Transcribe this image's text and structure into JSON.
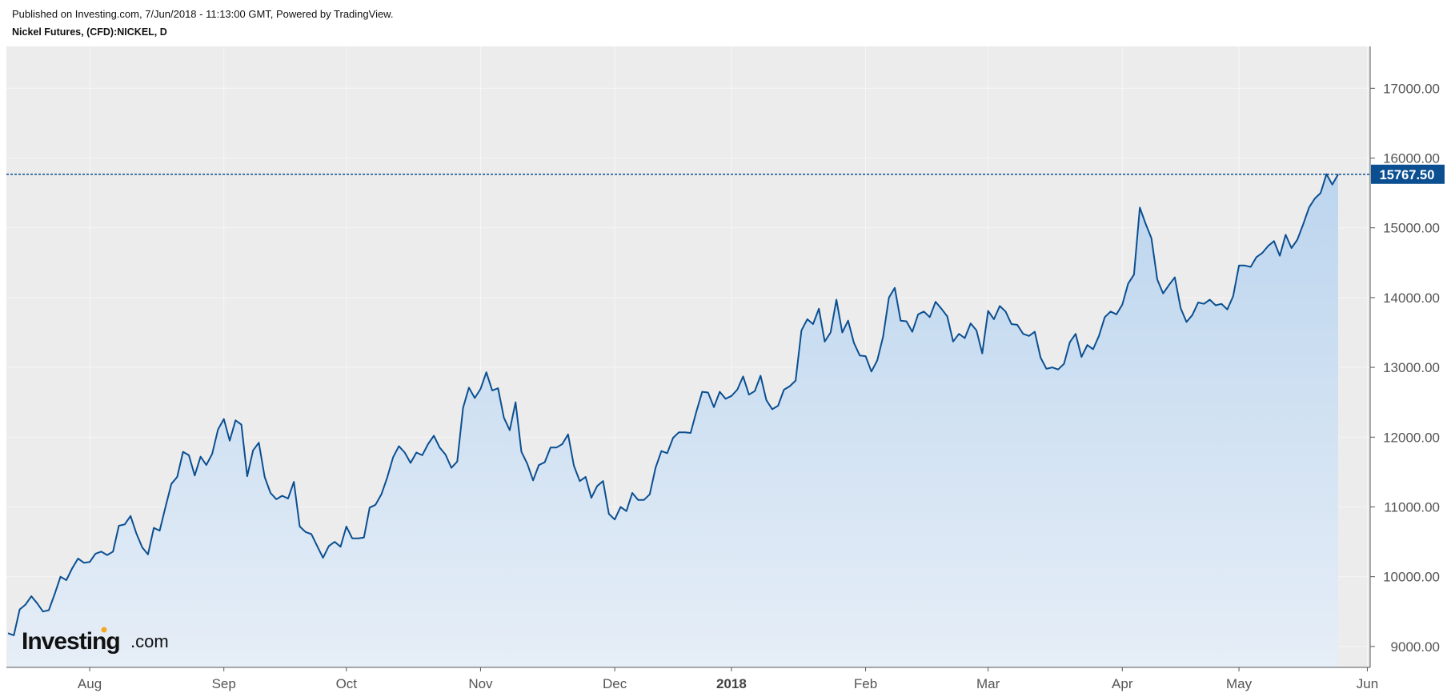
{
  "header": {
    "published": "Published on Investing.com, 7/Jun/2018 - 11:13:00 GMT, Powered by TradingView.",
    "title": "Nickel Futures, (CFD):NICKEL, D"
  },
  "logo": {
    "main": "Investing",
    "suffix": ".com",
    "dot_color": "#f5a623"
  },
  "colors": {
    "line": "#0b4f91",
    "fill_top": "#bcd5ee",
    "fill_bottom": "#e6eef7",
    "plot_bg": "#ececec",
    "grid": "#f6f6f6",
    "price_tag": "#0b4f91"
  },
  "chart_data": {
    "type": "area",
    "ylim": [
      8700,
      17600
    ],
    "y_ticks": [
      "9000.00",
      "10000.00",
      "11000.00",
      "12000.00",
      "13000.00",
      "14000.00",
      "15000.00",
      "16000.00",
      "17000.00"
    ],
    "x_ticks": [
      {
        "label": "Aug",
        "index": 14,
        "bold": false
      },
      {
        "label": "Sep",
        "index": 37,
        "bold": false
      },
      {
        "label": "Oct",
        "index": 58,
        "bold": false
      },
      {
        "label": "Nov",
        "index": 81,
        "bold": false
      },
      {
        "label": "Dec",
        "index": 104,
        "bold": false
      },
      {
        "label": "2018",
        "index": 124,
        "bold": true
      },
      {
        "label": "Feb",
        "index": 147,
        "bold": false
      },
      {
        "label": "Mar",
        "index": 168,
        "bold": false
      },
      {
        "label": "Apr",
        "index": 191,
        "bold": false
      },
      {
        "label": "May",
        "index": 211,
        "bold": false
      },
      {
        "label": "Jun",
        "index": 233,
        "bold": false
      }
    ],
    "last_value": "15767.50",
    "last_value_num": 15767.5,
    "values": [
      9190,
      9160,
      9530,
      9600,
      9720,
      9620,
      9500,
      9520,
      9750,
      10000,
      9950,
      10120,
      10260,
      10200,
      10210,
      10330,
      10360,
      10310,
      10360,
      10730,
      10750,
      10870,
      10620,
      10420,
      10320,
      10700,
      10660,
      11000,
      11330,
      11430,
      11790,
      11740,
      11450,
      11720,
      11600,
      11760,
      12110,
      12260,
      11950,
      12240,
      12180,
      11440,
      11810,
      11920,
      11430,
      11200,
      11110,
      11160,
      11120,
      11360,
      10720,
      10640,
      10610,
      10440,
      10270,
      10440,
      10500,
      10430,
      10720,
      10550,
      10550,
      10560,
      10990,
      11030,
      11180,
      11420,
      11710,
      11870,
      11780,
      11630,
      11780,
      11740,
      11900,
      12020,
      11850,
      11750,
      11560,
      11650,
      12420,
      12710,
      12560,
      12690,
      12930,
      12670,
      12700,
      12280,
      12100,
      12500,
      11790,
      11620,
      11380,
      11600,
      11640,
      11850,
      11850,
      11900,
      12040,
      11590,
      11370,
      11430,
      11130,
      11300,
      11370,
      10900,
      10820,
      11000,
      10940,
      11200,
      11100,
      11100,
      11180,
      11560,
      11800,
      11770,
      11990,
      12070,
      12070,
      12060,
      12370,
      12650,
      12640,
      12430,
      12650,
      12550,
      12590,
      12680,
      12870,
      12610,
      12660,
      12880,
      12530,
      12400,
      12450,
      12680,
      12730,
      12810,
      13530,
      13690,
      13620,
      13840,
      13370,
      13500,
      13970,
      13500,
      13670,
      13350,
      13170,
      13160,
      12940,
      13100,
      13440,
      14000,
      14140,
      13670,
      13660,
      13510,
      13760,
      13800,
      13720,
      13940,
      13840,
      13730,
      13370,
      13480,
      13420,
      13630,
      13530,
      13200,
      13810,
      13690,
      13880,
      13800,
      13620,
      13610,
      13480,
      13450,
      13510,
      13140,
      12980,
      13000,
      12970,
      13050,
      13360,
      13480,
      13150,
      13320,
      13260,
      13450,
      13720,
      13800,
      13760,
      13900,
      14200,
      14330,
      15290,
      15060,
      14850,
      14260,
      14060,
      14180,
      14290,
      13850,
      13650,
      13750,
      13930,
      13910,
      13970,
      13890,
      13910,
      13830,
      14020,
      14460,
      14460,
      14440,
      14580,
      14640,
      14740,
      14810,
      14600,
      14900,
      14710,
      14830,
      15050,
      15290,
      15420,
      15500,
      15770,
      15620,
      15767.5
    ]
  }
}
